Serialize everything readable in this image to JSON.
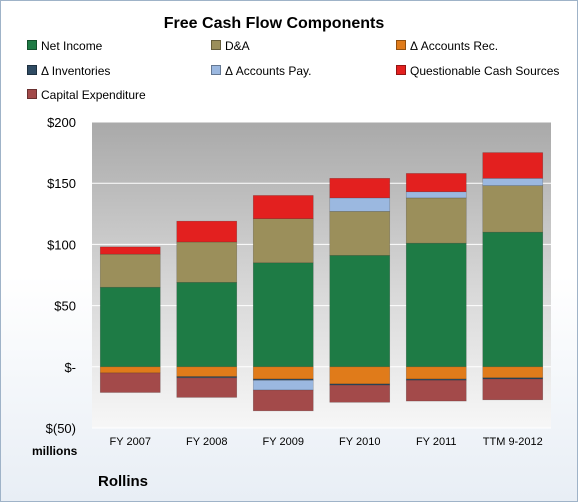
{
  "chart_data": {
    "type": "bar",
    "stacked": true,
    "title": "Free Cash Flow Components",
    "units_label": "millions",
    "company": "Rollins",
    "categories": [
      "FY 2007",
      "FY 2008",
      "FY 2009",
      "FY 2010",
      "FY 2011",
      "TTM 9-2012"
    ],
    "y_tick_labels": [
      "$200",
      "$150",
      "$100",
      "$50",
      "$-",
      "$(50)"
    ],
    "y_ticks": [
      200,
      150,
      100,
      50,
      0,
      -50
    ],
    "ylim": [
      -50,
      200
    ],
    "grid": true,
    "legend_position": "top",
    "series": [
      {
        "name": "Net Income",
        "color": "#1e7b45",
        "values": [
          65,
          69,
          85,
          91,
          101,
          110
        ]
      },
      {
        "name": "D&A",
        "color": "#9b8f5b",
        "values": [
          27,
          33,
          36,
          36,
          37,
          38
        ]
      },
      {
        "name": "Δ Accounts Rec.",
        "color": "#e07b1a",
        "values": [
          -5,
          -8,
          -10,
          -14,
          -10,
          -9
        ]
      },
      {
        "name": "Δ Inventories",
        "color": "#2f4b63",
        "values": [
          0,
          -1,
          -1,
          -1,
          -1,
          -1
        ]
      },
      {
        "name": "Δ Accounts Pay.",
        "color": "#9bb8e0",
        "values": [
          0,
          0,
          -8,
          11,
          5,
          6
        ]
      },
      {
        "name": "Questionable Cash Sources",
        "color": "#e3201f",
        "values": [
          6,
          17,
          19,
          16,
          15,
          21
        ]
      },
      {
        "name": "Capital Expenditure",
        "color": "#a34a4a",
        "values": [
          -16,
          -16,
          -17,
          -14,
          -17,
          -17
        ]
      }
    ]
  }
}
